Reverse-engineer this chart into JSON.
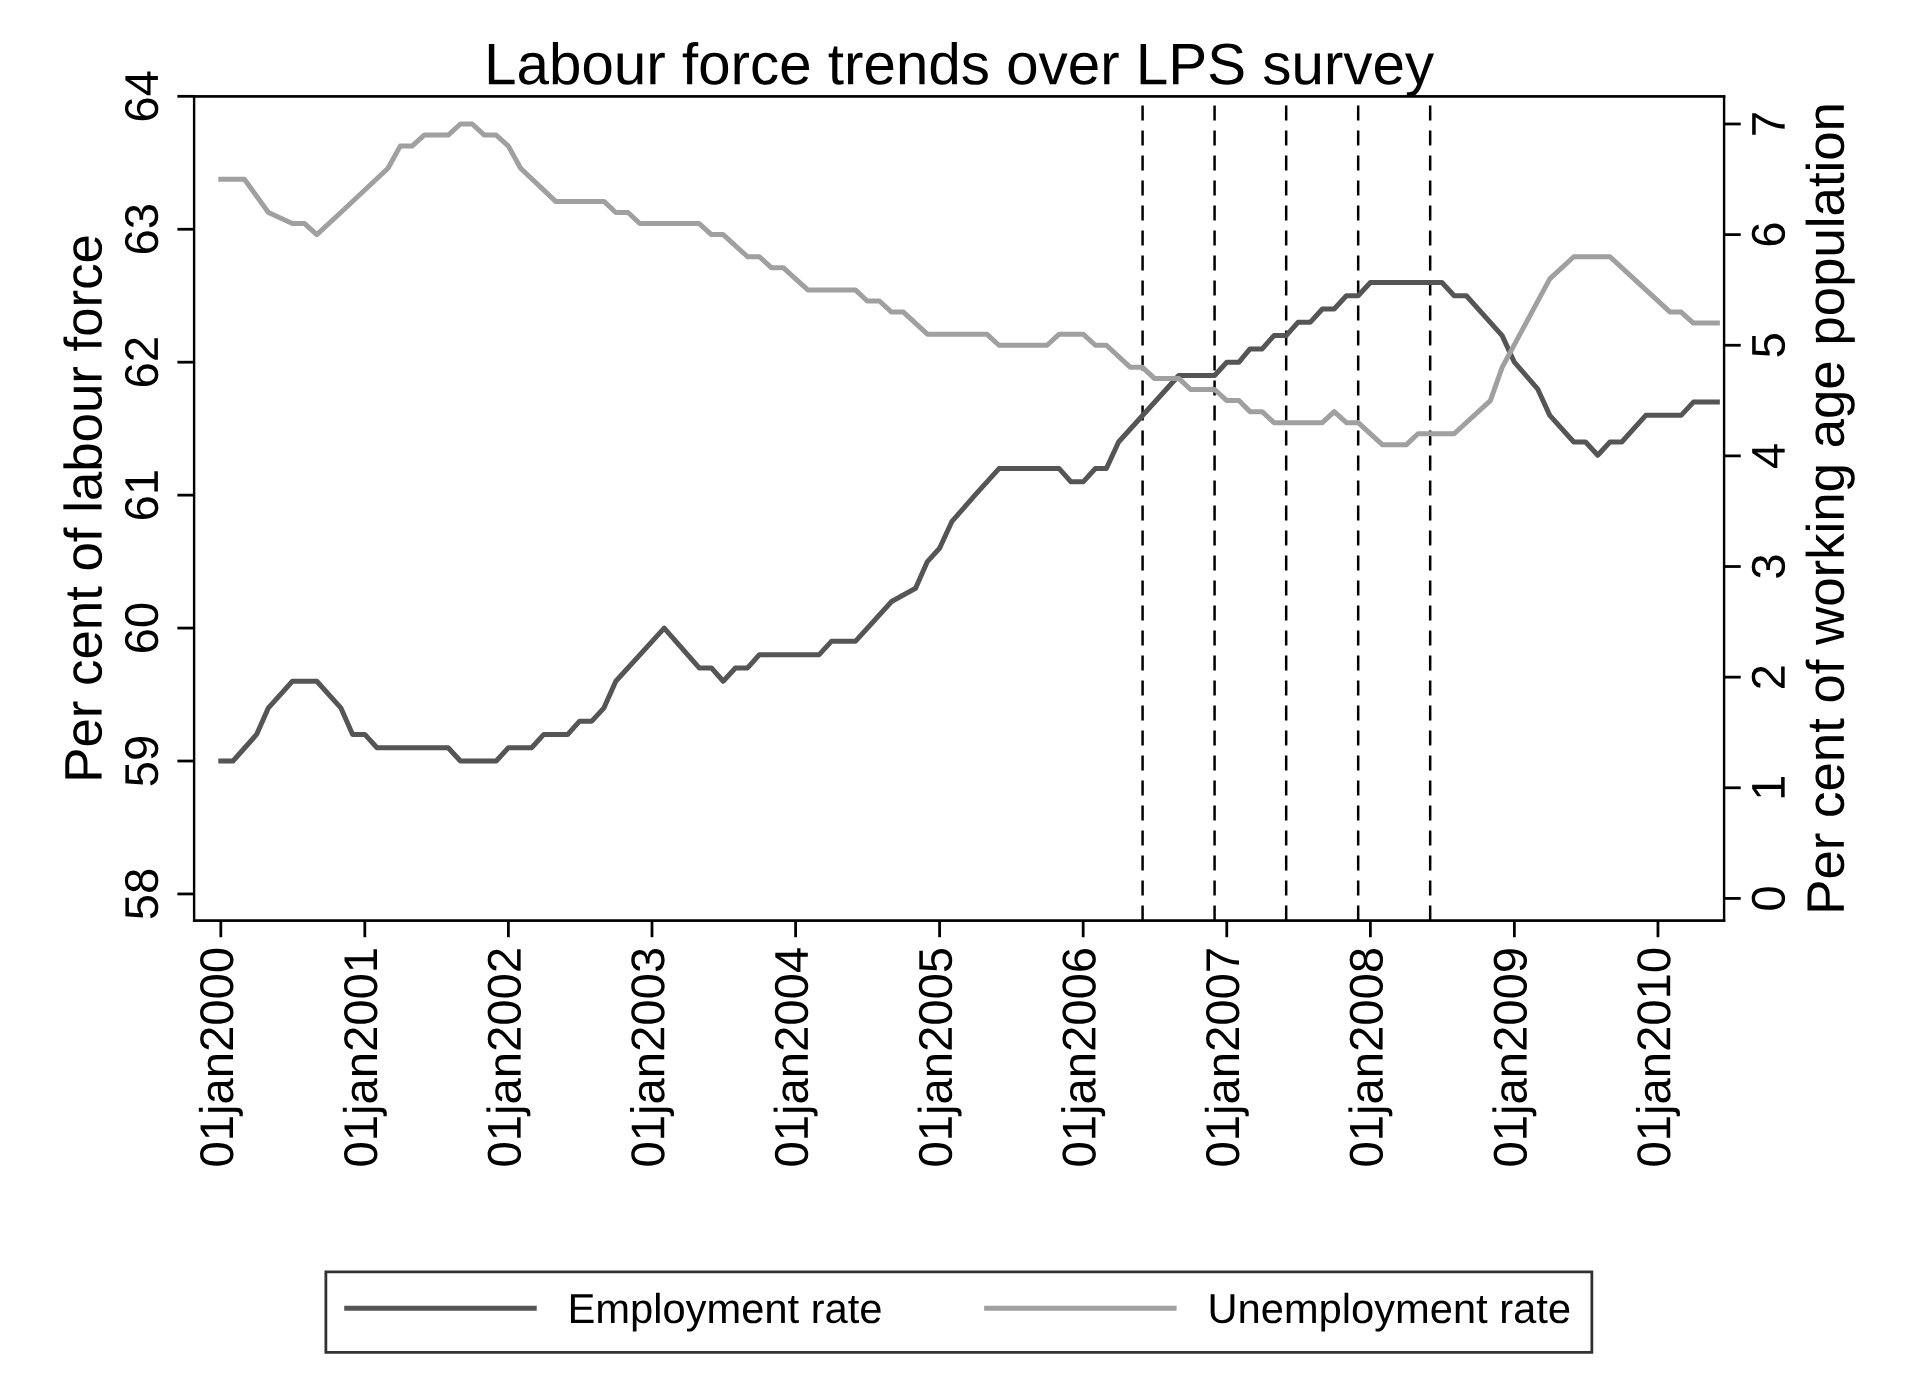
{
  "chart_data": {
    "type": "line",
    "title": "Labour force trends over LPS survey",
    "ylabel": "Per cent of labour force",
    "y2label": "Per cent of working age population",
    "series": [
      {
        "name": "Employment rate",
        "color": "#555555",
        "axis": "y",
        "x": [
          "2000-01",
          "2000-02",
          "2000-04",
          "2000-05",
          "2000-07",
          "2000-09",
          "2000-11",
          "2000-12",
          "2001-01",
          "2001-02",
          "2001-08",
          "2001-09",
          "2001-12",
          "2002-01",
          "2002-03",
          "2002-04",
          "2002-06",
          "2002-07",
          "2002-08",
          "2002-09",
          "2002-10",
          "2003-02",
          "2003-05",
          "2003-06",
          "2003-07",
          "2003-08",
          "2003-09",
          "2003-10",
          "2004-03",
          "2004-04",
          "2004-06",
          "2004-09",
          "2004-11",
          "2004-12",
          "2005-01",
          "2005-02",
          "2005-04",
          "2005-06",
          "2005-11",
          "2005-12",
          "2006-01",
          "2006-02",
          "2006-03",
          "2006-04",
          "2006-09",
          "2006-12",
          "2007-01",
          "2007-02",
          "2007-03",
          "2007-04",
          "2007-05",
          "2007-06",
          "2007-07",
          "2007-08",
          "2007-09",
          "2007-10",
          "2007-11",
          "2007-12",
          "2008-01",
          "2008-07",
          "2008-08",
          "2008-09",
          "2008-12",
          "2009-01",
          "2009-03",
          "2009-04",
          "2009-06",
          "2009-07",
          "2009-08",
          "2009-09",
          "2009-10",
          "2009-12",
          "2010-03",
          "2010-04",
          "2010-06"
        ],
        "values": [
          59.0,
          59.0,
          59.2,
          59.4,
          59.6,
          59.6,
          59.4,
          59.2,
          59.2,
          59.1,
          59.1,
          59.0,
          59.0,
          59.1,
          59.1,
          59.2,
          59.2,
          59.3,
          59.3,
          59.4,
          59.6,
          60.0,
          59.7,
          59.7,
          59.6,
          59.7,
          59.7,
          59.8,
          59.8,
          59.9,
          59.9,
          60.2,
          60.3,
          60.5,
          60.6,
          60.8,
          61.0,
          61.2,
          61.2,
          61.1,
          61.1,
          61.2,
          61.2,
          61.4,
          61.9,
          61.9,
          62.0,
          62.0,
          62.1,
          62.1,
          62.2,
          62.2,
          62.3,
          62.3,
          62.4,
          62.4,
          62.5,
          62.5,
          62.6,
          62.6,
          62.5,
          62.5,
          62.2,
          62.0,
          61.8,
          61.6,
          61.4,
          61.4,
          61.3,
          61.4,
          61.4,
          61.6,
          61.6,
          61.7,
          61.7
        ]
      },
      {
        "name": "Unemployment rate",
        "color": "#a0a0a0",
        "axis": "y2",
        "x": [
          "2000-01",
          "2000-03",
          "2000-05",
          "2000-07",
          "2000-08",
          "2000-09",
          "2000-11",
          "2001-03",
          "2001-04",
          "2001-05",
          "2001-06",
          "2001-08",
          "2001-09",
          "2001-10",
          "2001-11",
          "2001-12",
          "2002-01",
          "2002-02",
          "2002-05",
          "2002-09",
          "2002-10",
          "2002-11",
          "2002-12",
          "2003-05",
          "2003-06",
          "2003-07",
          "2003-09",
          "2003-10",
          "2003-11",
          "2003-12",
          "2004-02",
          "2004-06",
          "2004-07",
          "2004-08",
          "2004-09",
          "2004-10",
          "2004-12",
          "2005-05",
          "2005-06",
          "2005-10",
          "2005-11",
          "2006-01",
          "2006-02",
          "2006-03",
          "2006-05",
          "2006-06",
          "2006-07",
          "2006-09",
          "2006-10",
          "2006-12",
          "2007-01",
          "2007-02",
          "2007-03",
          "2007-04",
          "2007-05",
          "2007-09",
          "2007-10",
          "2007-11",
          "2007-12",
          "2008-02",
          "2008-04",
          "2008-05",
          "2008-08",
          "2008-11",
          "2008-12",
          "2009-04",
          "2009-06",
          "2009-09",
          "2009-11",
          "2010-02",
          "2010-03",
          "2010-04",
          "2010-06"
        ],
        "values": [
          6.5,
          6.5,
          6.2,
          6.1,
          6.1,
          6.0,
          6.2,
          6.6,
          6.8,
          6.8,
          6.9,
          6.9,
          7.0,
          7.0,
          6.9,
          6.9,
          6.8,
          6.6,
          6.3,
          6.3,
          6.2,
          6.2,
          6.1,
          6.1,
          6.0,
          6.0,
          5.8,
          5.8,
          5.7,
          5.7,
          5.5,
          5.5,
          5.4,
          5.4,
          5.3,
          5.3,
          5.1,
          5.1,
          5.0,
          5.0,
          5.1,
          5.1,
          5.0,
          5.0,
          4.8,
          4.8,
          4.7,
          4.7,
          4.6,
          4.6,
          4.5,
          4.5,
          4.4,
          4.4,
          4.3,
          4.3,
          4.4,
          4.3,
          4.3,
          4.1,
          4.1,
          4.2,
          4.2,
          4.5,
          4.8,
          5.6,
          5.8,
          5.8,
          5.6,
          5.3,
          5.3,
          5.2,
          5.2
        ]
      }
    ],
    "xlim": [
      "1999-10-25",
      "2010-06-18"
    ],
    "xticks": [
      {
        "value": "2000-01-01",
        "label": "01jan2000"
      },
      {
        "value": "2001-01-01",
        "label": "01jan2001"
      },
      {
        "value": "2002-01-01",
        "label": "01jan2002"
      },
      {
        "value": "2003-01-01",
        "label": "01jan2003"
      },
      {
        "value": "2004-01-01",
        "label": "01jan2004"
      },
      {
        "value": "2005-01-01",
        "label": "01jan2005"
      },
      {
        "value": "2006-01-01",
        "label": "01jan2006"
      },
      {
        "value": "2007-01-01",
        "label": "01jan2007"
      },
      {
        "value": "2008-01-01",
        "label": "01jan2008"
      },
      {
        "value": "2009-01-01",
        "label": "01jan2009"
      },
      {
        "value": "2010-01-01",
        "label": "01jan2010"
      }
    ],
    "ylim": [
      57.8,
      64
    ],
    "yticks": [
      58,
      59,
      60,
      61,
      62,
      63,
      64
    ],
    "y2lim": [
      -0.2,
      7.25
    ],
    "y2ticks": [
      0,
      1,
      2,
      3,
      4,
      5,
      6,
      7
    ],
    "ref_lines": [
      {
        "axis": "x",
        "value": "2006-06",
        "color": "#000000",
        "line_style": "dashed"
      },
      {
        "axis": "x",
        "value": "2006-12",
        "color": "#000000",
        "line_style": "dashed"
      },
      {
        "axis": "x",
        "value": "2007-06",
        "color": "#000000",
        "line_style": "dashed"
      },
      {
        "axis": "x",
        "value": "2007-12",
        "color": "#000000",
        "line_style": "dashed"
      },
      {
        "axis": "x",
        "value": "2008-06",
        "color": "#000000",
        "line_style": "dashed"
      }
    ],
    "grid": false,
    "legend": "bottom",
    "marker": "none",
    "line_style": "solid"
  }
}
